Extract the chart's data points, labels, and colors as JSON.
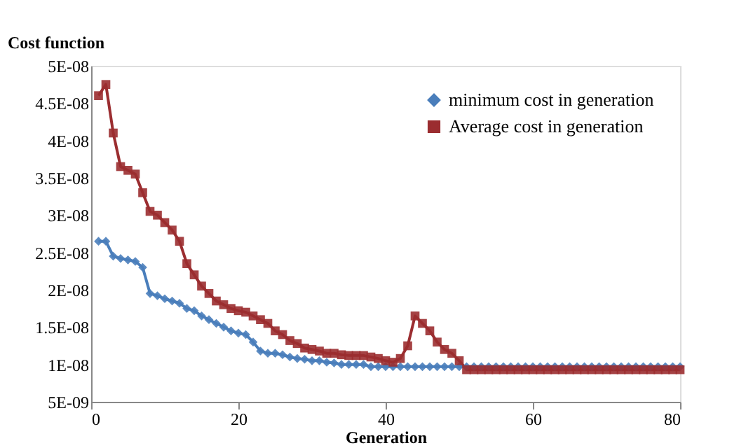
{
  "chart_data": {
    "type": "line",
    "xlabel": "Generation",
    "ylabel": "Cost function",
    "x": [
      1,
      2,
      3,
      4,
      5,
      6,
      7,
      8,
      9,
      10,
      11,
      12,
      13,
      14,
      15,
      16,
      17,
      18,
      19,
      20,
      21,
      22,
      23,
      24,
      25,
      26,
      27,
      28,
      29,
      30,
      31,
      32,
      33,
      34,
      35,
      36,
      37,
      38,
      39,
      40,
      41,
      42,
      43,
      44,
      45,
      46,
      47,
      48,
      49,
      50,
      51,
      52,
      53,
      54,
      55,
      56,
      57,
      58,
      59,
      60,
      61,
      62,
      63,
      64,
      65,
      66,
      67,
      68,
      69,
      70,
      71,
      72,
      73,
      74,
      75,
      76,
      77,
      78,
      79,
      80
    ],
    "series": [
      {
        "name": "minimum cost in generation",
        "color": "#4a7ebb",
        "marker": "diamond",
        "values": [
          2.65e-08,
          2.65e-08,
          2.45e-08,
          2.42e-08,
          2.4e-08,
          2.38e-08,
          2.3e-08,
          1.95e-08,
          1.92e-08,
          1.88e-08,
          1.85e-08,
          1.82e-08,
          1.75e-08,
          1.72e-08,
          1.65e-08,
          1.6e-08,
          1.55e-08,
          1.5e-08,
          1.45e-08,
          1.42e-08,
          1.4e-08,
          1.3e-08,
          1.18e-08,
          1.15e-08,
          1.15e-08,
          1.13e-08,
          1.1e-08,
          1.08e-08,
          1.07e-08,
          1.05e-08,
          1.05e-08,
          1.03e-08,
          1.02e-08,
          1e-08,
          1e-08,
          1e-08,
          1e-08,
          9.7e-09,
          9.7e-09,
          9.7e-09,
          9.7e-09,
          9.7e-09,
          9.7e-09,
          9.7e-09,
          9.7e-09,
          9.7e-09,
          9.7e-09,
          9.7e-09,
          9.7e-09,
          9.7e-09,
          9.7e-09,
          9.7e-09,
          9.7e-09,
          9.7e-09,
          9.7e-09,
          9.7e-09,
          9.7e-09,
          9.7e-09,
          9.7e-09,
          9.7e-09,
          9.7e-09,
          9.7e-09,
          9.7e-09,
          9.7e-09,
          9.7e-09,
          9.7e-09,
          9.7e-09,
          9.7e-09,
          9.7e-09,
          9.7e-09,
          9.7e-09,
          9.7e-09,
          9.7e-09,
          9.7e-09,
          9.7e-09,
          9.7e-09,
          9.7e-09,
          9.7e-09,
          9.7e-09,
          9.7e-09
        ]
      },
      {
        "name": "Average cost in generation",
        "color": "#9b2d30",
        "marker": "square",
        "values": [
          4.6e-08,
          4.75e-08,
          4.1e-08,
          3.65e-08,
          3.6e-08,
          3.55e-08,
          3.3e-08,
          3.05e-08,
          3e-08,
          2.9e-08,
          2.8e-08,
          2.65e-08,
          2.35e-08,
          2.2e-08,
          2.05e-08,
          1.95e-08,
          1.85e-08,
          1.8e-08,
          1.75e-08,
          1.72e-08,
          1.7e-08,
          1.65e-08,
          1.6e-08,
          1.55e-08,
          1.45e-08,
          1.4e-08,
          1.32e-08,
          1.28e-08,
          1.22e-08,
          1.2e-08,
          1.18e-08,
          1.15e-08,
          1.15e-08,
          1.13e-08,
          1.12e-08,
          1.12e-08,
          1.12e-08,
          1.1e-08,
          1.08e-08,
          1.05e-08,
          1.03e-08,
          1.08e-08,
          1.25e-08,
          1.65e-08,
          1.55e-08,
          1.45e-08,
          1.3e-08,
          1.2e-08,
          1.15e-08,
          1.05e-08,
          9.3e-09,
          9.3e-09,
          9.3e-09,
          9.3e-09,
          9.3e-09,
          9.3e-09,
          9.3e-09,
          9.3e-09,
          9.3e-09,
          9.3e-09,
          9.3e-09,
          9.3e-09,
          9.3e-09,
          9.3e-09,
          9.3e-09,
          9.3e-09,
          9.3e-09,
          9.3e-09,
          9.3e-09,
          9.3e-09,
          9.3e-09,
          9.3e-09,
          9.3e-09,
          9.3e-09,
          9.3e-09,
          9.3e-09,
          9.3e-09,
          9.3e-09,
          9.3e-09,
          9.3e-09
        ]
      }
    ],
    "xlim": [
      0,
      80
    ],
    "xticks": [
      0,
      20,
      40,
      60,
      80
    ],
    "ylim": [
      5e-09,
      5e-08
    ],
    "yticks": [
      {
        "value": 5e-09,
        "label": "5E-09"
      },
      {
        "value": 1e-08,
        "label": "1E-08"
      },
      {
        "value": 1.5e-08,
        "label": "1.5E-08"
      },
      {
        "value": 2e-08,
        "label": "2E-08"
      },
      {
        "value": 2.5e-08,
        "label": "2.5E-08"
      },
      {
        "value": 3e-08,
        "label": "3E-08"
      },
      {
        "value": 3.5e-08,
        "label": "3.5E-08"
      },
      {
        "value": 4e-08,
        "label": "4E-08"
      },
      {
        "value": 4.5e-08,
        "label": "4.5E-08"
      },
      {
        "value": 5e-08,
        "label": "5E-08"
      }
    ],
    "legend": "top right",
    "grid": false,
    "line_style": "solid"
  }
}
